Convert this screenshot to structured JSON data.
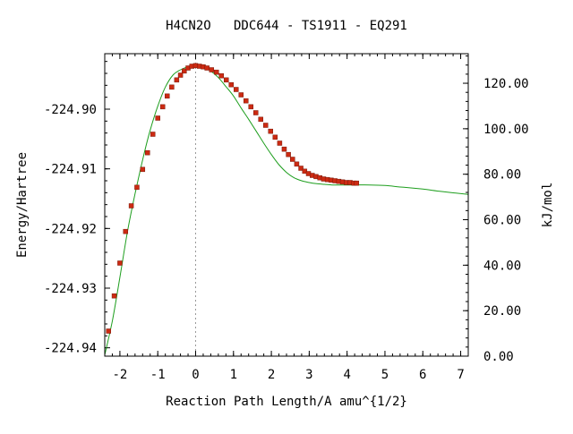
{
  "chart_data": {
    "type": "line",
    "title": "H4CN2O   DDC644 - TS1911 - EQ291",
    "xlabel": "Reaction Path Length/A amu^{1/2}",
    "ylabel_left": "Energy/Hartree",
    "ylabel_right": "kJ/mol",
    "xlim": [
      -2.4,
      7.2
    ],
    "ylim_left": [
      -224.9414,
      -224.8907
    ],
    "ylim_right": [
      0,
      133
    ],
    "x_ticks": [
      -2,
      -1,
      0,
      1,
      2,
      3,
      4,
      5,
      6,
      7
    ],
    "x_tick_labels": [
      "-2",
      "-1",
      "0",
      "1",
      "2",
      "3",
      "4",
      "5",
      "6",
      "7"
    ],
    "y_left_ticks": [
      -224.9,
      -224.91,
      -224.92,
      -224.93,
      -224.94
    ],
    "y_left_tick_labels": [
      "-224.90",
      "-224.91",
      "-224.92",
      "-224.93",
      "-224.94"
    ],
    "y_right_ticks": [
      0,
      20,
      40,
      60,
      80,
      100,
      120
    ],
    "y_right_tick_labels": [
      "0.00",
      "20.00",
      "40.00",
      "60.00",
      "80.00",
      "100.00",
      "120.00"
    ],
    "ts_marker_x": 0,
    "curve_color": "#1e9e1e",
    "point_color": "#cc2a12",
    "marker_line_color": "#999999",
    "series": [
      {
        "style": "smooth-line",
        "x": [
          -2.4,
          -2.2,
          -2.0,
          -1.8,
          -1.6,
          -1.4,
          -1.2,
          -1.0,
          -0.8,
          -0.6,
          -0.4,
          -0.2,
          0.0,
          0.2,
          0.4,
          0.6,
          0.8,
          1.0,
          1.2,
          1.4,
          1.6,
          1.8,
          2.0,
          2.2,
          2.4,
          2.6,
          2.8,
          3.0,
          3.2,
          3.4,
          3.6,
          3.8,
          4.0,
          4.2,
          4.6,
          5.0,
          5.5,
          6.0,
          6.5,
          7.2
        ],
        "y": [
          -224.9412,
          -224.9355,
          -224.9282,
          -224.9205,
          -224.9142,
          -224.9085,
          -224.9035,
          -224.8995,
          -224.8963,
          -224.8943,
          -224.8934,
          -224.8929,
          -224.8927,
          -224.8929,
          -224.8936,
          -224.8947,
          -224.8962,
          -224.8978,
          -224.8998,
          -224.9017,
          -224.9037,
          -224.9057,
          -224.9076,
          -224.9093,
          -224.9106,
          -224.9115,
          -224.912,
          -224.9123,
          -224.9125,
          -224.9126,
          -224.9127,
          -224.9127,
          -224.9127,
          -224.9127,
          -224.9127,
          -224.9128,
          -224.9131,
          -224.9134,
          -224.9138,
          -224.9143
        ]
      },
      {
        "style": "points",
        "x": [
          -2.3,
          -2.15,
          -2.0,
          -1.85,
          -1.7,
          -1.55,
          -1.4,
          -1.27,
          -1.13,
          -1.0,
          -0.87,
          -0.75,
          -0.63,
          -0.5,
          -0.4,
          -0.3,
          -0.2,
          -0.1,
          0.0,
          0.1,
          0.2,
          0.3,
          0.42,
          0.55,
          0.68,
          0.81,
          0.94,
          1.07,
          1.2,
          1.33,
          1.46,
          1.59,
          1.72,
          1.85,
          1.98,
          2.1,
          2.22,
          2.34,
          2.45,
          2.56,
          2.67,
          2.78,
          2.88,
          2.98,
          3.08,
          3.18,
          3.28,
          3.38,
          3.48,
          3.58,
          3.68,
          3.78,
          3.88,
          3.98,
          4.08,
          4.18,
          4.25
        ],
        "y": [
          -224.9372,
          -224.9313,
          -224.9258,
          -224.9205,
          -224.9162,
          -224.9131,
          -224.9101,
          -224.9073,
          -224.9042,
          -224.9015,
          -224.8996,
          -224.8978,
          -224.8963,
          -224.8951,
          -224.8943,
          -224.8936,
          -224.8931,
          -224.8928,
          -224.8927,
          -224.8928,
          -224.8929,
          -224.8931,
          -224.8934,
          -224.8938,
          -224.8944,
          -224.8951,
          -224.8959,
          -224.8967,
          -224.8976,
          -224.8986,
          -224.8996,
          -224.9006,
          -224.9017,
          -224.9027,
          -224.9037,
          -224.9047,
          -224.9057,
          -224.9067,
          -224.9076,
          -224.9084,
          -224.9092,
          -224.9099,
          -224.9104,
          -224.9108,
          -224.9111,
          -224.9113,
          -224.9115,
          -224.9117,
          -224.9118,
          -224.9119,
          -224.912,
          -224.9121,
          -224.9122,
          -224.9123,
          -224.9123,
          -224.9124,
          -224.9124
        ]
      }
    ]
  }
}
